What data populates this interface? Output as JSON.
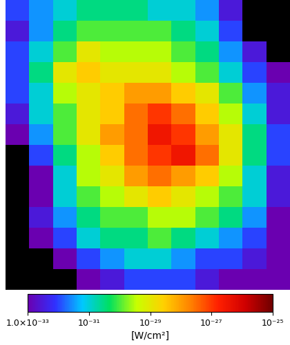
{
  "chart_data": {
    "type": "heatmap",
    "cells": [
      [
        1e-32,
        3e-32,
        1e-31,
        3e-31,
        3e-31,
        3e-31,
        1e-31,
        1e-31,
        3e-32,
        3e-33,
        null,
        null
      ],
      [
        3e-33,
        3e-32,
        3e-31,
        1e-30,
        1e-30,
        1e-30,
        1e-30,
        3e-31,
        1e-31,
        1e-32,
        null,
        null
      ],
      [
        1e-32,
        1e-31,
        1e-30,
        1e-29,
        3e-30,
        3e-30,
        3e-30,
        1e-30,
        3e-31,
        3e-32,
        3e-33,
        null
      ],
      [
        1e-32,
        3e-31,
        1e-29,
        3e-29,
        1e-29,
        1e-29,
        1e-29,
        3e-30,
        1e-30,
        1e-31,
        1e-32,
        1e-33
      ],
      [
        1e-32,
        1e-31,
        3e-30,
        1e-29,
        3e-29,
        1e-28,
        1e-28,
        3e-29,
        1e-29,
        1e-30,
        3e-32,
        3e-33
      ],
      [
        3e-33,
        1e-31,
        1e-30,
        1e-29,
        3e-29,
        3e-28,
        1e-27,
        3e-28,
        3e-29,
        3e-30,
        1e-31,
        3e-33
      ],
      [
        1e-33,
        3e-32,
        1e-30,
        1e-29,
        1e-28,
        3e-28,
        3e-27,
        1e-27,
        1e-28,
        1e-29,
        3e-31,
        1e-32
      ],
      [
        null,
        1e-32,
        3e-31,
        3e-30,
        3e-29,
        3e-28,
        1e-27,
        3e-27,
        3e-28,
        1e-29,
        3e-31,
        1e-32
      ],
      [
        null,
        1e-33,
        1e-31,
        3e-30,
        1e-29,
        1e-28,
        3e-28,
        1e-28,
        3e-29,
        3e-30,
        1e-31,
        3e-33
      ],
      [
        null,
        1e-33,
        1e-31,
        1e-30,
        3e-30,
        1e-29,
        3e-29,
        1e-29,
        3e-30,
        1e-30,
        1e-31,
        3e-33
      ],
      [
        null,
        3e-33,
        3e-32,
        3e-31,
        1e-30,
        1e-30,
        3e-30,
        3e-30,
        1e-30,
        3e-31,
        3e-32,
        1e-33
      ],
      [
        null,
        1e-33,
        1e-32,
        1e-31,
        3e-31,
        3e-31,
        1e-30,
        3e-31,
        1e-31,
        3e-32,
        1e-32,
        1e-33
      ],
      [
        null,
        null,
        1e-33,
        1e-32,
        3e-32,
        1e-31,
        1e-31,
        3e-32,
        1e-32,
        1e-32,
        3e-33,
        1e-33
      ],
      [
        null,
        null,
        null,
        1e-33,
        3e-33,
        1e-32,
        1e-32,
        1e-32,
        3e-33,
        1e-33,
        1e-33,
        1e-33
      ]
    ],
    "log": true,
    "tick_labels": false,
    "colorbar_label": "[W/cm²]",
    "colorbar_range": [
      1e-33,
      1e-25
    ],
    "colorbar_ticks": [
      {
        "value": 1e-33,
        "label": "1.0×10⁻³³"
      },
      {
        "value": 1e-31,
        "label": "10⁻³¹"
      },
      {
        "value": 1e-29,
        "label": "10⁻²⁹"
      },
      {
        "value": 1e-27,
        "label": "10⁻²⁷"
      },
      {
        "value": 1e-25,
        "label": "10⁻²⁵"
      }
    ]
  }
}
